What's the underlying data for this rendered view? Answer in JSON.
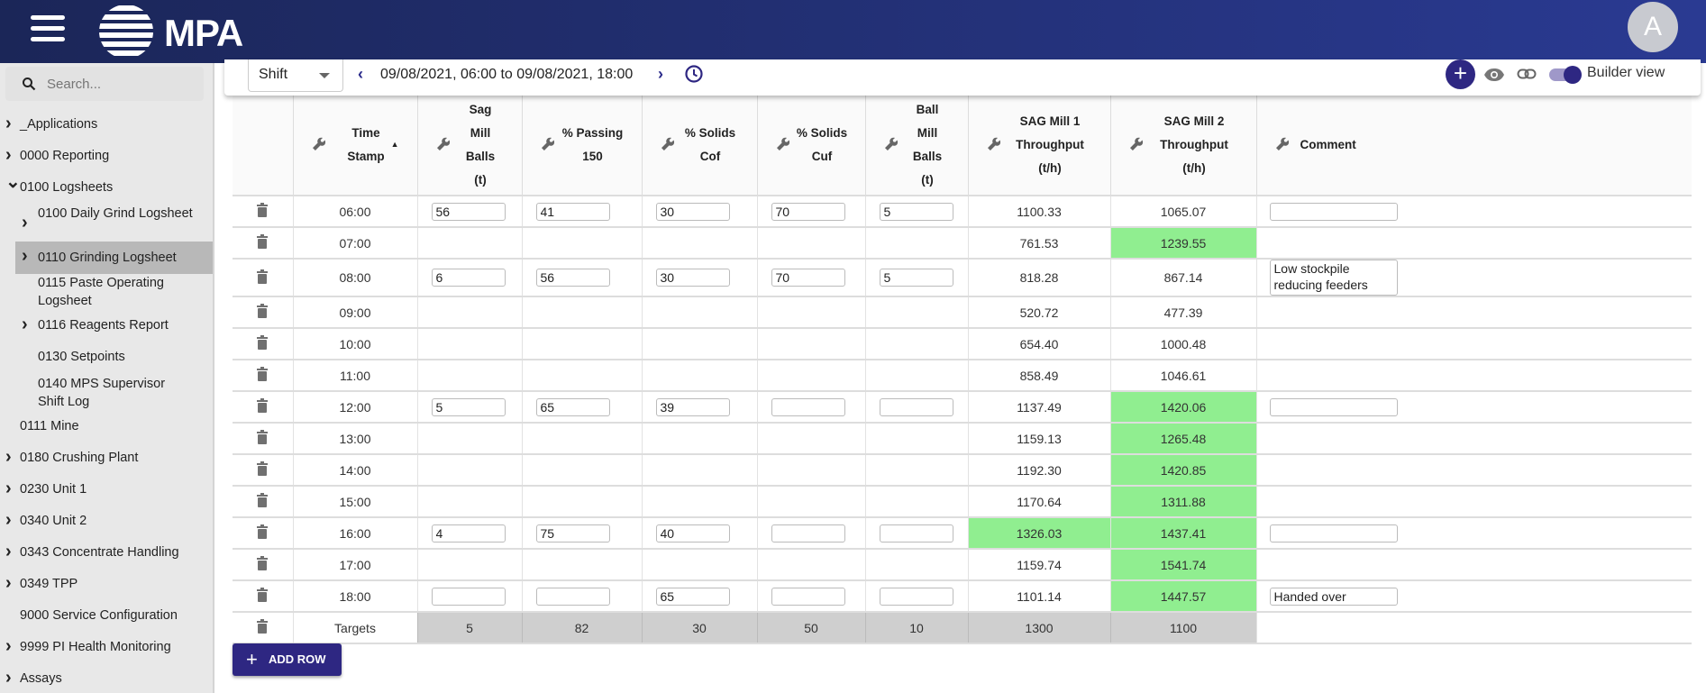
{
  "header": {
    "logo_text": "MPA",
    "avatar_letter": "A",
    "brand_color": "#2e2782"
  },
  "sidebar": {
    "search_placeholder": "Search...",
    "items": [
      {
        "label": "_Applications",
        "chevron": "right",
        "level": 0
      },
      {
        "label": "0000 Reporting",
        "chevron": "right",
        "level": 0
      },
      {
        "label": "0100 Logsheets",
        "chevron": "down",
        "level": 0
      },
      {
        "label": "0100 Daily Grind Logsheet",
        "chevron": "right",
        "level": 1
      },
      {
        "label": "0110 Grinding Logsheet",
        "chevron": "right",
        "level": 1,
        "selected": true
      },
      {
        "label": "0115 Paste Operating Logsheet",
        "chevron": null,
        "level": 1
      },
      {
        "label": "0116 Reagents Report",
        "chevron": "right",
        "level": 1
      },
      {
        "label": "0130 Setpoints",
        "chevron": null,
        "level": 1
      },
      {
        "label": "0140 MPS Supervisor Shift Log",
        "chevron": null,
        "level": 1
      },
      {
        "label": "0111 Mine",
        "chevron": null,
        "level": 0
      },
      {
        "label": "0180 Crushing Plant",
        "chevron": "right",
        "level": 0
      },
      {
        "label": "0230 Unit 1",
        "chevron": "right",
        "level": 0
      },
      {
        "label": "0340 Unit 2",
        "chevron": "right",
        "level": 0
      },
      {
        "label": "0343 Concentrate Handling",
        "chevron": "right",
        "level": 0
      },
      {
        "label": "0349 TPP",
        "chevron": "right",
        "level": 0
      },
      {
        "label": "9000 Service Configuration",
        "chevron": null,
        "level": 0
      },
      {
        "label": "9999 PI Health Monitoring",
        "chevron": "right",
        "level": 0
      },
      {
        "label": "Assays",
        "chevron": "right",
        "level": 0
      }
    ]
  },
  "toolbar": {
    "period": "Shift",
    "range": "09/08/2021, 06:00 to 09/08/2021, 18:00",
    "builder_label": "Builder view",
    "builder_on": true
  },
  "table": {
    "columns": [
      [
        "Time",
        "Stamp"
      ],
      [
        "Sag",
        "Mill",
        "Balls",
        "(t)"
      ],
      [
        "% Passing",
        "150"
      ],
      [
        "% Solids",
        "Cof"
      ],
      [
        "% Solids",
        "Cuf"
      ],
      [
        "Ball",
        "Mill",
        "Balls",
        "(t)"
      ],
      [
        "SAG Mill 1",
        "Throughput",
        "(t/h)"
      ],
      [
        "SAG Mill 2",
        "Throughput",
        "(t/h)"
      ],
      [
        "Comment"
      ]
    ],
    "sort": "Time Stamp ascending",
    "highlight_color": "#90ee90",
    "target_color": "#cfcfcf",
    "rows": [
      {
        "time": "06:00",
        "inputs": [
          "56",
          "41",
          "30",
          "70",
          "5"
        ],
        "sag1": "1100.33",
        "sag2": "1065.07",
        "comment": "",
        "g1": false,
        "g2": false
      },
      {
        "time": "07:00",
        "inputs": null,
        "sag1": "761.53",
        "sag2": "1239.55",
        "comment": null,
        "g1": false,
        "g2": true
      },
      {
        "time": "08:00",
        "inputs": [
          "6",
          "56",
          "30",
          "70",
          "5"
        ],
        "sag1": "818.28",
        "sag2": "867.14",
        "comment": "Low stockpile reducing feeders",
        "g1": false,
        "g2": false,
        "tall": true
      },
      {
        "time": "09:00",
        "inputs": null,
        "sag1": "520.72",
        "sag2": "477.39",
        "comment": null,
        "g1": false,
        "g2": false
      },
      {
        "time": "10:00",
        "inputs": null,
        "sag1": "654.40",
        "sag2": "1000.48",
        "comment": null,
        "g1": false,
        "g2": false
      },
      {
        "time": "11:00",
        "inputs": null,
        "sag1": "858.49",
        "sag2": "1046.61",
        "comment": null,
        "g1": false,
        "g2": false
      },
      {
        "time": "12:00",
        "inputs": [
          "5",
          "65",
          "39",
          "",
          ""
        ],
        "sag1": "1137.49",
        "sag2": "1420.06",
        "comment": "",
        "g1": false,
        "g2": true
      },
      {
        "time": "13:00",
        "inputs": null,
        "sag1": "1159.13",
        "sag2": "1265.48",
        "comment": null,
        "g1": false,
        "g2": true
      },
      {
        "time": "14:00",
        "inputs": null,
        "sag1": "1192.30",
        "sag2": "1420.85",
        "comment": null,
        "g1": false,
        "g2": true
      },
      {
        "time": "15:00",
        "inputs": null,
        "sag1": "1170.64",
        "sag2": "1311.88",
        "comment": null,
        "g1": false,
        "g2": true
      },
      {
        "time": "16:00",
        "inputs": [
          "4",
          "75",
          "40",
          "",
          ""
        ],
        "sag1": "1326.03",
        "sag2": "1437.41",
        "comment": "",
        "g1": true,
        "g2": true
      },
      {
        "time": "17:00",
        "inputs": null,
        "sag1": "1159.74",
        "sag2": "1541.74",
        "comment": null,
        "g1": false,
        "g2": true
      },
      {
        "time": "18:00",
        "inputs": [
          "",
          "",
          "65",
          "",
          ""
        ],
        "sag1": "1101.14",
        "sag2": "1447.57",
        "comment": "Handed over",
        "g1": false,
        "g2": true
      }
    ],
    "targets": {
      "label": "Targets",
      "values": [
        "5",
        "82",
        "30",
        "50",
        "10",
        "1300",
        "1100"
      ]
    }
  },
  "add_row_label": "ADD ROW"
}
